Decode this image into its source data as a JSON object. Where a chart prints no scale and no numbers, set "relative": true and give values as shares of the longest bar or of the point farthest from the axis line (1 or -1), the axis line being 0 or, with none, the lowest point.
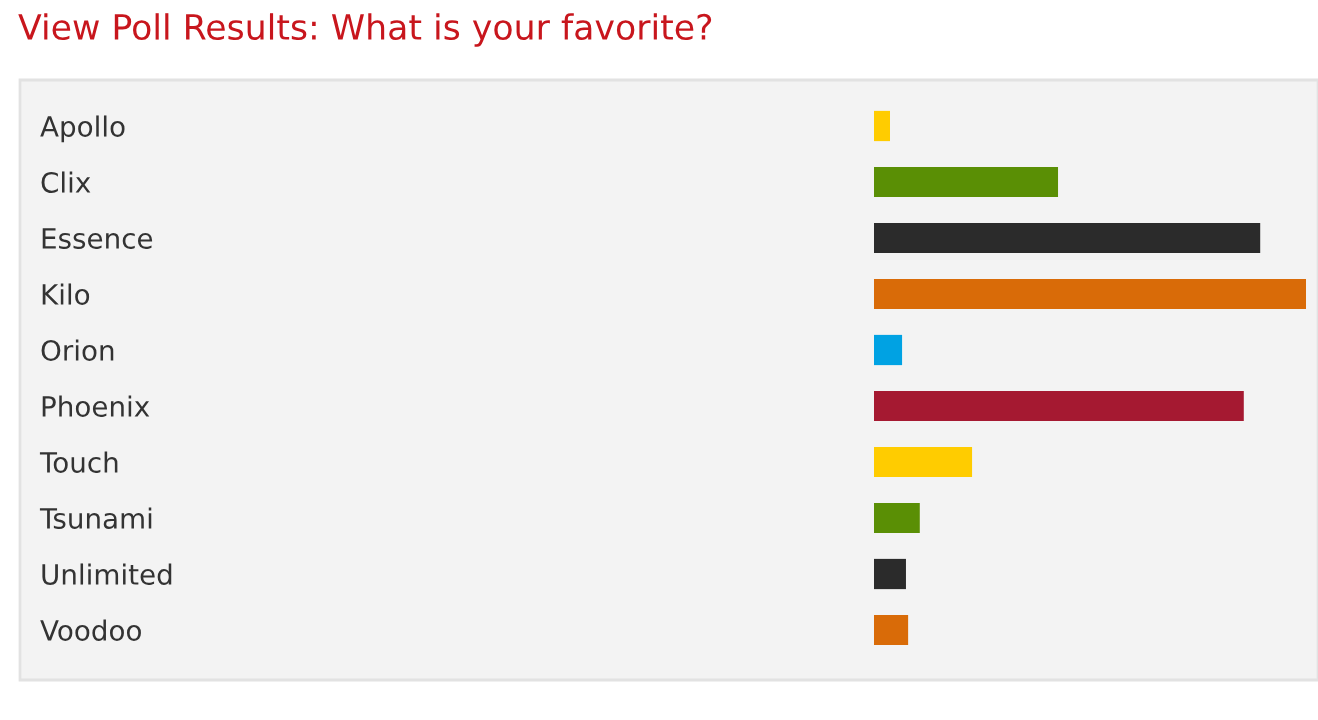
{
  "chart_data": {
    "type": "bar",
    "orientation": "horizontal",
    "relative": true,
    "title": "View Poll Results: What is your favorite?",
    "categories": [
      "Apollo",
      "Clix",
      "Essence",
      "Kilo",
      "Orion",
      "Phoenix",
      "Touch",
      "Tsunami",
      "Unlimited",
      "Voodoo"
    ],
    "values": [
      0.037,
      0.426,
      0.894,
      1,
      0.065,
      0.856,
      0.227,
      0.106,
      0.074,
      0.079
    ],
    "colors": [
      "#ffcc00",
      "#5a8f05",
      "#2b2b2b",
      "#d96b08",
      "#00a2e3",
      "#a51931",
      "#ffcc00",
      "#5a8f05",
      "#2b2b2b",
      "#d96b08"
    ],
    "legend": false
  }
}
